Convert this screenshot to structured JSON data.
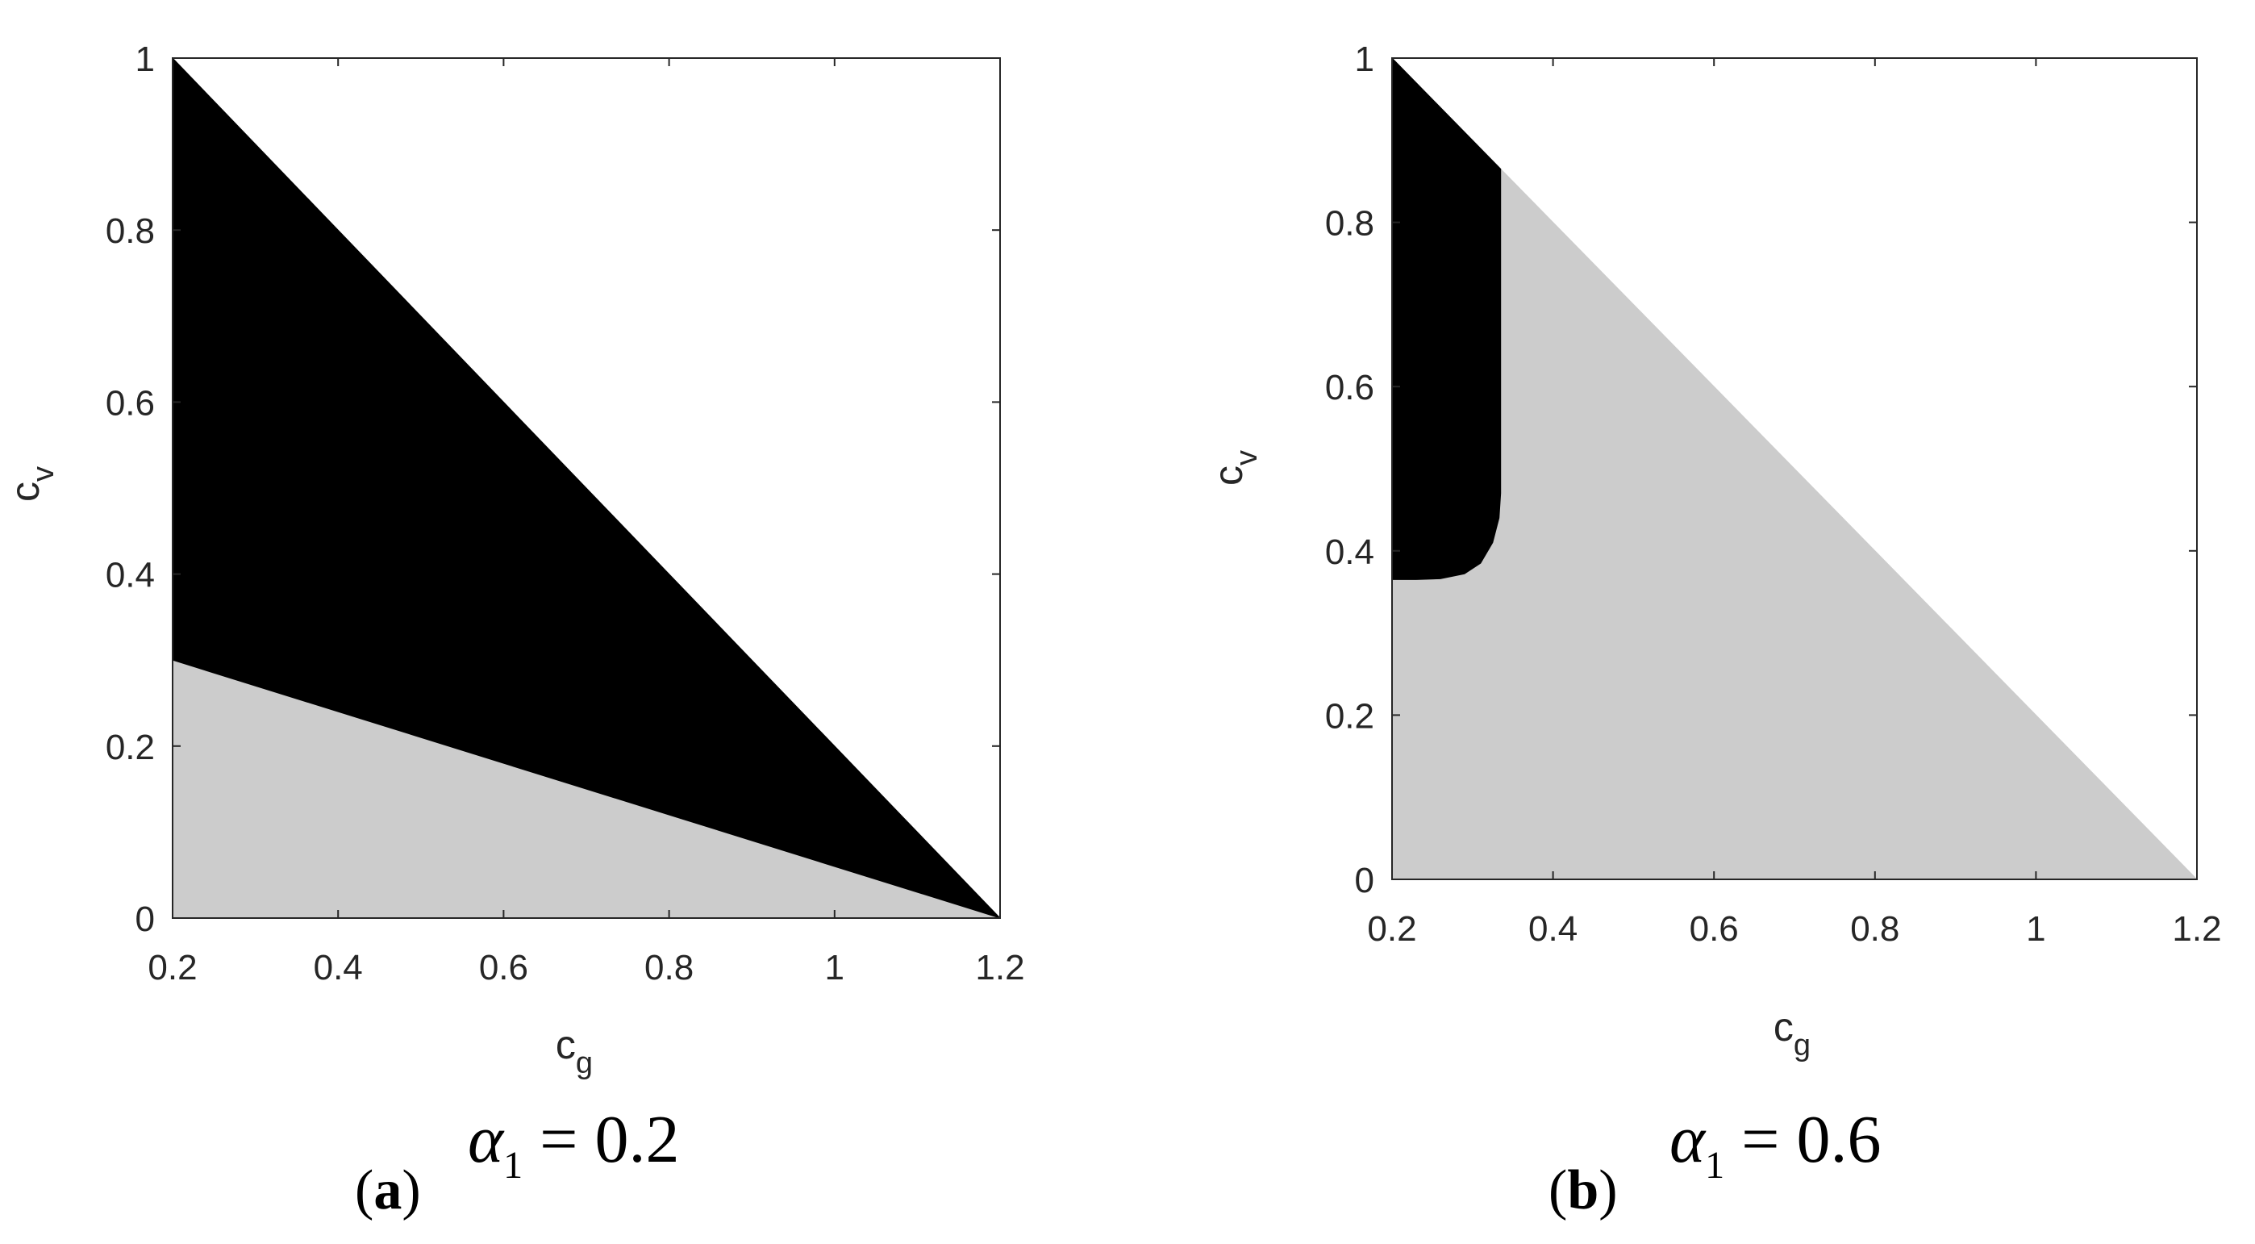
{
  "colors": {
    "region_dark": "#000000",
    "region_light": "#cccccc",
    "background": "#ffffff",
    "axis": "#262626"
  },
  "chart_data": [
    {
      "type": "area",
      "panel": "(a)",
      "caption": {
        "label_prefix": "(",
        "label_letter": "a",
        "label_suffix": ")",
        "alpha_symbol": "α",
        "alpha_subscript": "1",
        "equation_rest": " = 0.2"
      },
      "xlabel": "c",
      "xlabel_sub": "g",
      "ylabel": "c",
      "ylabel_sub": "v",
      "xlim": [
        0.2,
        1.2
      ],
      "ylim": [
        0,
        1
      ],
      "xticks": [
        0.2,
        0.4,
        0.6,
        0.8,
        1,
        1.2
      ],
      "xtick_labels": [
        "0.2",
        "0.4",
        "0.6",
        "0.8",
        "1",
        "1.2"
      ],
      "yticks": [
        0,
        0.2,
        0.4,
        0.6,
        0.8,
        1
      ],
      "ytick_labels": [
        "0",
        "0.2",
        "0.4",
        "0.6",
        "0.8",
        "1"
      ],
      "grid": false,
      "regions": [
        {
          "color": "light",
          "points": [
            [
              0.2,
              0
            ],
            [
              1.2,
              0
            ],
            [
              0.2,
              0.3
            ]
          ]
        },
        {
          "color": "dark",
          "points": [
            [
              0.2,
              0.3
            ],
            [
              1.2,
              0
            ],
            [
              0.2,
              1
            ]
          ]
        }
      ]
    },
    {
      "type": "area",
      "panel": "(b)",
      "caption": {
        "label_prefix": "(",
        "label_letter": "b",
        "label_suffix": ")",
        "alpha_symbol": "α",
        "alpha_subscript": "1",
        "equation_rest": " = 0.6"
      },
      "xlabel": "c",
      "xlabel_sub": "g",
      "ylabel": "c",
      "ylabel_sub": "v",
      "xlim": [
        0.2,
        1.2
      ],
      "ylim": [
        0,
        1
      ],
      "xticks": [
        0.2,
        0.4,
        0.6,
        0.8,
        1,
        1.2
      ],
      "xtick_labels": [
        "0.2",
        "0.4",
        "0.6",
        "0.8",
        "1",
        "1.2"
      ],
      "yticks": [
        0,
        0.2,
        0.4,
        0.6,
        0.8,
        1
      ],
      "ytick_labels": [
        "0",
        "0.2",
        "0.4",
        "0.6",
        "0.8",
        "1"
      ],
      "grid": false,
      "regions": [
        {
          "color": "light",
          "points": [
            [
              0.2,
              0
            ],
            [
              1.2,
              0
            ],
            [
              0.2,
              1
            ]
          ]
        },
        {
          "color": "dark",
          "points": [
            [
              0.2,
              1
            ],
            [
              0.335,
              0.865
            ],
            [
              0.335,
              0.47
            ],
            [
              0.333,
              0.44
            ],
            [
              0.325,
              0.41
            ],
            [
              0.31,
              0.385
            ],
            [
              0.29,
              0.372
            ],
            [
              0.26,
              0.366
            ],
            [
              0.23,
              0.365
            ],
            [
              0.2,
              0.365
            ]
          ]
        }
      ]
    }
  ]
}
